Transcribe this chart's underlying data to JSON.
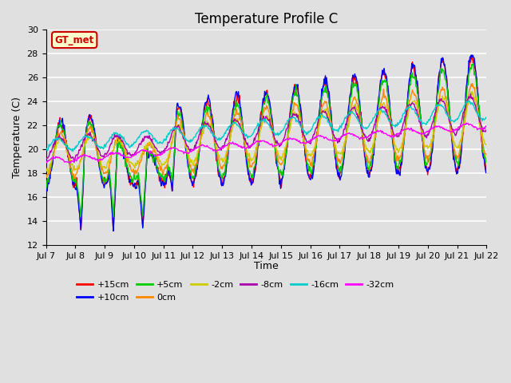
{
  "title": "Temperature Profile C",
  "xlabel": "Time",
  "ylabel": "Temperature (C)",
  "ylim": [
    12,
    30
  ],
  "yticks": [
    12,
    14,
    16,
    18,
    20,
    22,
    24,
    26,
    28,
    30
  ],
  "x_tick_labels": [
    "Jul 7",
    "Jul 8",
    "Jul 9",
    "Jul 10",
    "Jul 11",
    "Jul 12",
    "Jul 13",
    "Jul 14",
    "Jul 15",
    "Jul 16",
    "Jul 17",
    "Jul 18",
    "Jul 19",
    "Jul 20",
    "Jul 21",
    "Jul 22"
  ],
  "series_colors": {
    "+15cm": "#ff0000",
    "+10cm": "#0000ff",
    "+5cm": "#00cc00",
    "0cm": "#ff8800",
    "-2cm": "#cccc00",
    "-8cm": "#aa00aa",
    "-16cm": "#00cccc",
    "-32cm": "#ff00ff"
  },
  "legend_label": "GT_met",
  "legend_bg": "#ffffcc",
  "legend_edge": "#cc0000",
  "bg_color": "#e0e0e0",
  "grid_color": "#ffffff",
  "title_fontsize": 12,
  "axis_fontsize": 9,
  "tick_fontsize": 8,
  "n_points": 720,
  "n_days": 15,
  "figwidth": 6.4,
  "figheight": 4.8,
  "dpi": 100
}
